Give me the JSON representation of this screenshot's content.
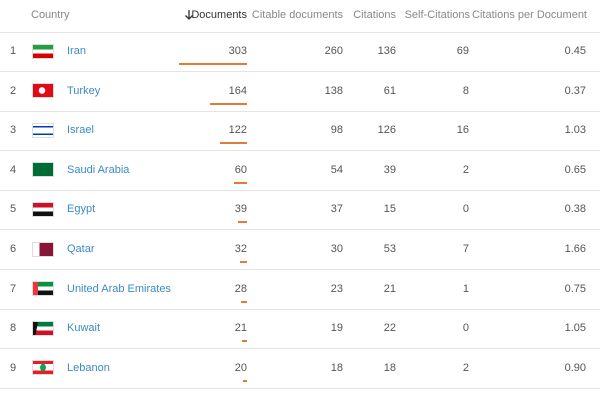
{
  "table": {
    "headers": [
      "Country",
      "Documents",
      "Citable documents",
      "Citations",
      "Self-Citations",
      "Citations per Document"
    ],
    "rows": [
      [
        1,
        "Iran",
        303,
        260,
        136,
        69,
        "0.45"
      ],
      [
        2,
        "Turkey",
        164,
        138,
        61,
        8,
        "0.37"
      ],
      [
        3,
        "Israel",
        122,
        98,
        126,
        16,
        "1.03"
      ],
      [
        4,
        "Saudi Arabia",
        60,
        54,
        39,
        2,
        "0.65"
      ],
      [
        5,
        "Egypt",
        39,
        37,
        15,
        0,
        "0.38"
      ],
      [
        6,
        "Qatar",
        32,
        30,
        53,
        7,
        "1.66"
      ],
      [
        7,
        "United Arab Emirates",
        28,
        23,
        21,
        1,
        "0.75"
      ],
      [
        8,
        "Kuwait",
        21,
        19,
        22,
        0,
        "1.05"
      ],
      [
        9,
        "Lebanon",
        20,
        18,
        18,
        2,
        "0.90"
      ]
    ]
  }
}
